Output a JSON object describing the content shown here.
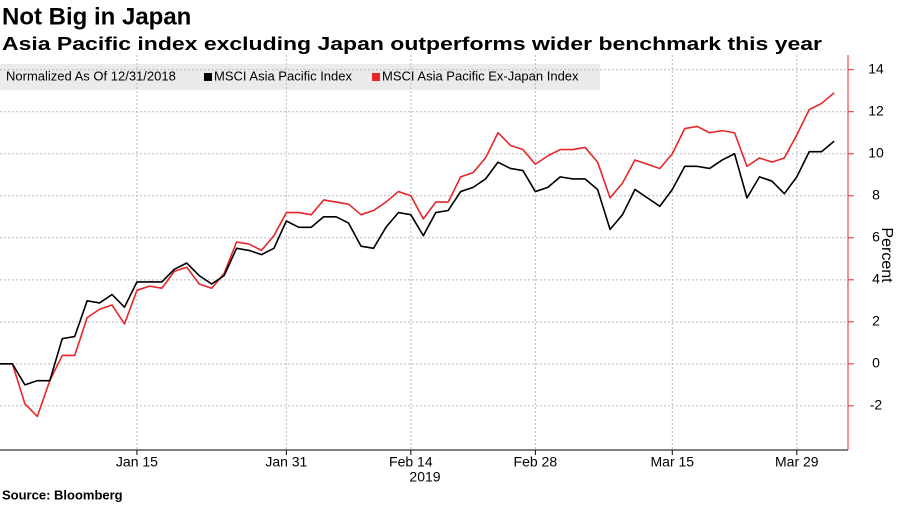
{
  "chart_data": {
    "type": "line",
    "title": "Not Big in Japan",
    "subtitle": "Asia Pacific index excluding Japan outperforms wider benchmark this year",
    "legend_title": "Normalized As Of 12/31/2018",
    "x_label": "2019",
    "y_label": "Percent",
    "source": "Source: Bloomberg",
    "categories": [
      null,
      null,
      null,
      null,
      null,
      null,
      null,
      null,
      null,
      null,
      null,
      "Jan 15",
      null,
      null,
      null,
      null,
      null,
      null,
      null,
      null,
      null,
      null,
      null,
      "Jan 31",
      null,
      null,
      null,
      null,
      null,
      null,
      null,
      null,
      null,
      "Feb 14",
      null,
      null,
      null,
      null,
      null,
      null,
      null,
      null,
      null,
      "Feb 28",
      null,
      null,
      null,
      null,
      null,
      null,
      null,
      null,
      null,
      null,
      "Mar 15",
      null,
      null,
      null,
      null,
      null,
      null,
      null,
      null,
      null,
      "Mar 29",
      null,
      null,
      null
    ],
    "series": [
      {
        "name": "MSCI Asia Pacific Index",
        "color": "#000000",
        "values": [
          0,
          0,
          -1.0,
          -0.8,
          -0.8,
          1.2,
          1.3,
          3.0,
          2.9,
          3.3,
          2.7,
          3.9,
          3.9,
          3.9,
          4.5,
          4.8,
          4.2,
          3.8,
          4.2,
          5.5,
          5.4,
          5.2,
          5.5,
          6.8,
          6.5,
          6.5,
          7.0,
          7.0,
          6.7,
          5.6,
          5.5,
          6.5,
          7.2,
          7.1,
          6.1,
          7.2,
          7.3,
          8.2,
          8.4,
          8.8,
          9.6,
          9.3,
          9.2,
          8.2,
          8.4,
          8.9,
          8.8,
          8.8,
          8.3,
          6.4,
          7.1,
          8.3,
          7.9,
          7.5,
          8.3,
          9.4,
          9.4,
          9.3,
          9.7,
          10.0,
          7.9,
          8.9,
          8.7,
          8.1,
          8.9,
          10.1,
          10.1,
          10.6
        ]
      },
      {
        "name": "MSCI Asia Pacific Ex-Japan Index",
        "color": "#e8262a",
        "values": [
          0,
          0,
          -1.9,
          -2.5,
          -0.8,
          0.4,
          0.4,
          2.2,
          2.6,
          2.8,
          1.9,
          3.5,
          3.7,
          3.6,
          4.4,
          4.6,
          3.8,
          3.6,
          4.3,
          5.8,
          5.7,
          5.4,
          6.1,
          7.2,
          7.2,
          7.1,
          7.8,
          7.7,
          7.6,
          7.1,
          7.3,
          7.7,
          8.2,
          8.0,
          6.9,
          7.7,
          7.7,
          8.9,
          9.1,
          9.8,
          11.0,
          10.4,
          10.2,
          9.5,
          9.9,
          10.2,
          10.2,
          10.3,
          9.6,
          7.9,
          8.6,
          9.7,
          9.5,
          9.3,
          10.0,
          11.2,
          11.3,
          11.0,
          11.1,
          11.0,
          9.4,
          9.8,
          9.6,
          9.8,
          10.9,
          12.1,
          12.4,
          12.9
        ]
      }
    ],
    "ylim": [
      -4.1,
      14.7
    ],
    "yticks": [
      -2,
      0,
      2,
      4,
      6,
      8,
      10,
      12,
      14
    ],
    "axis_color": "#e8262a",
    "grid": true
  }
}
